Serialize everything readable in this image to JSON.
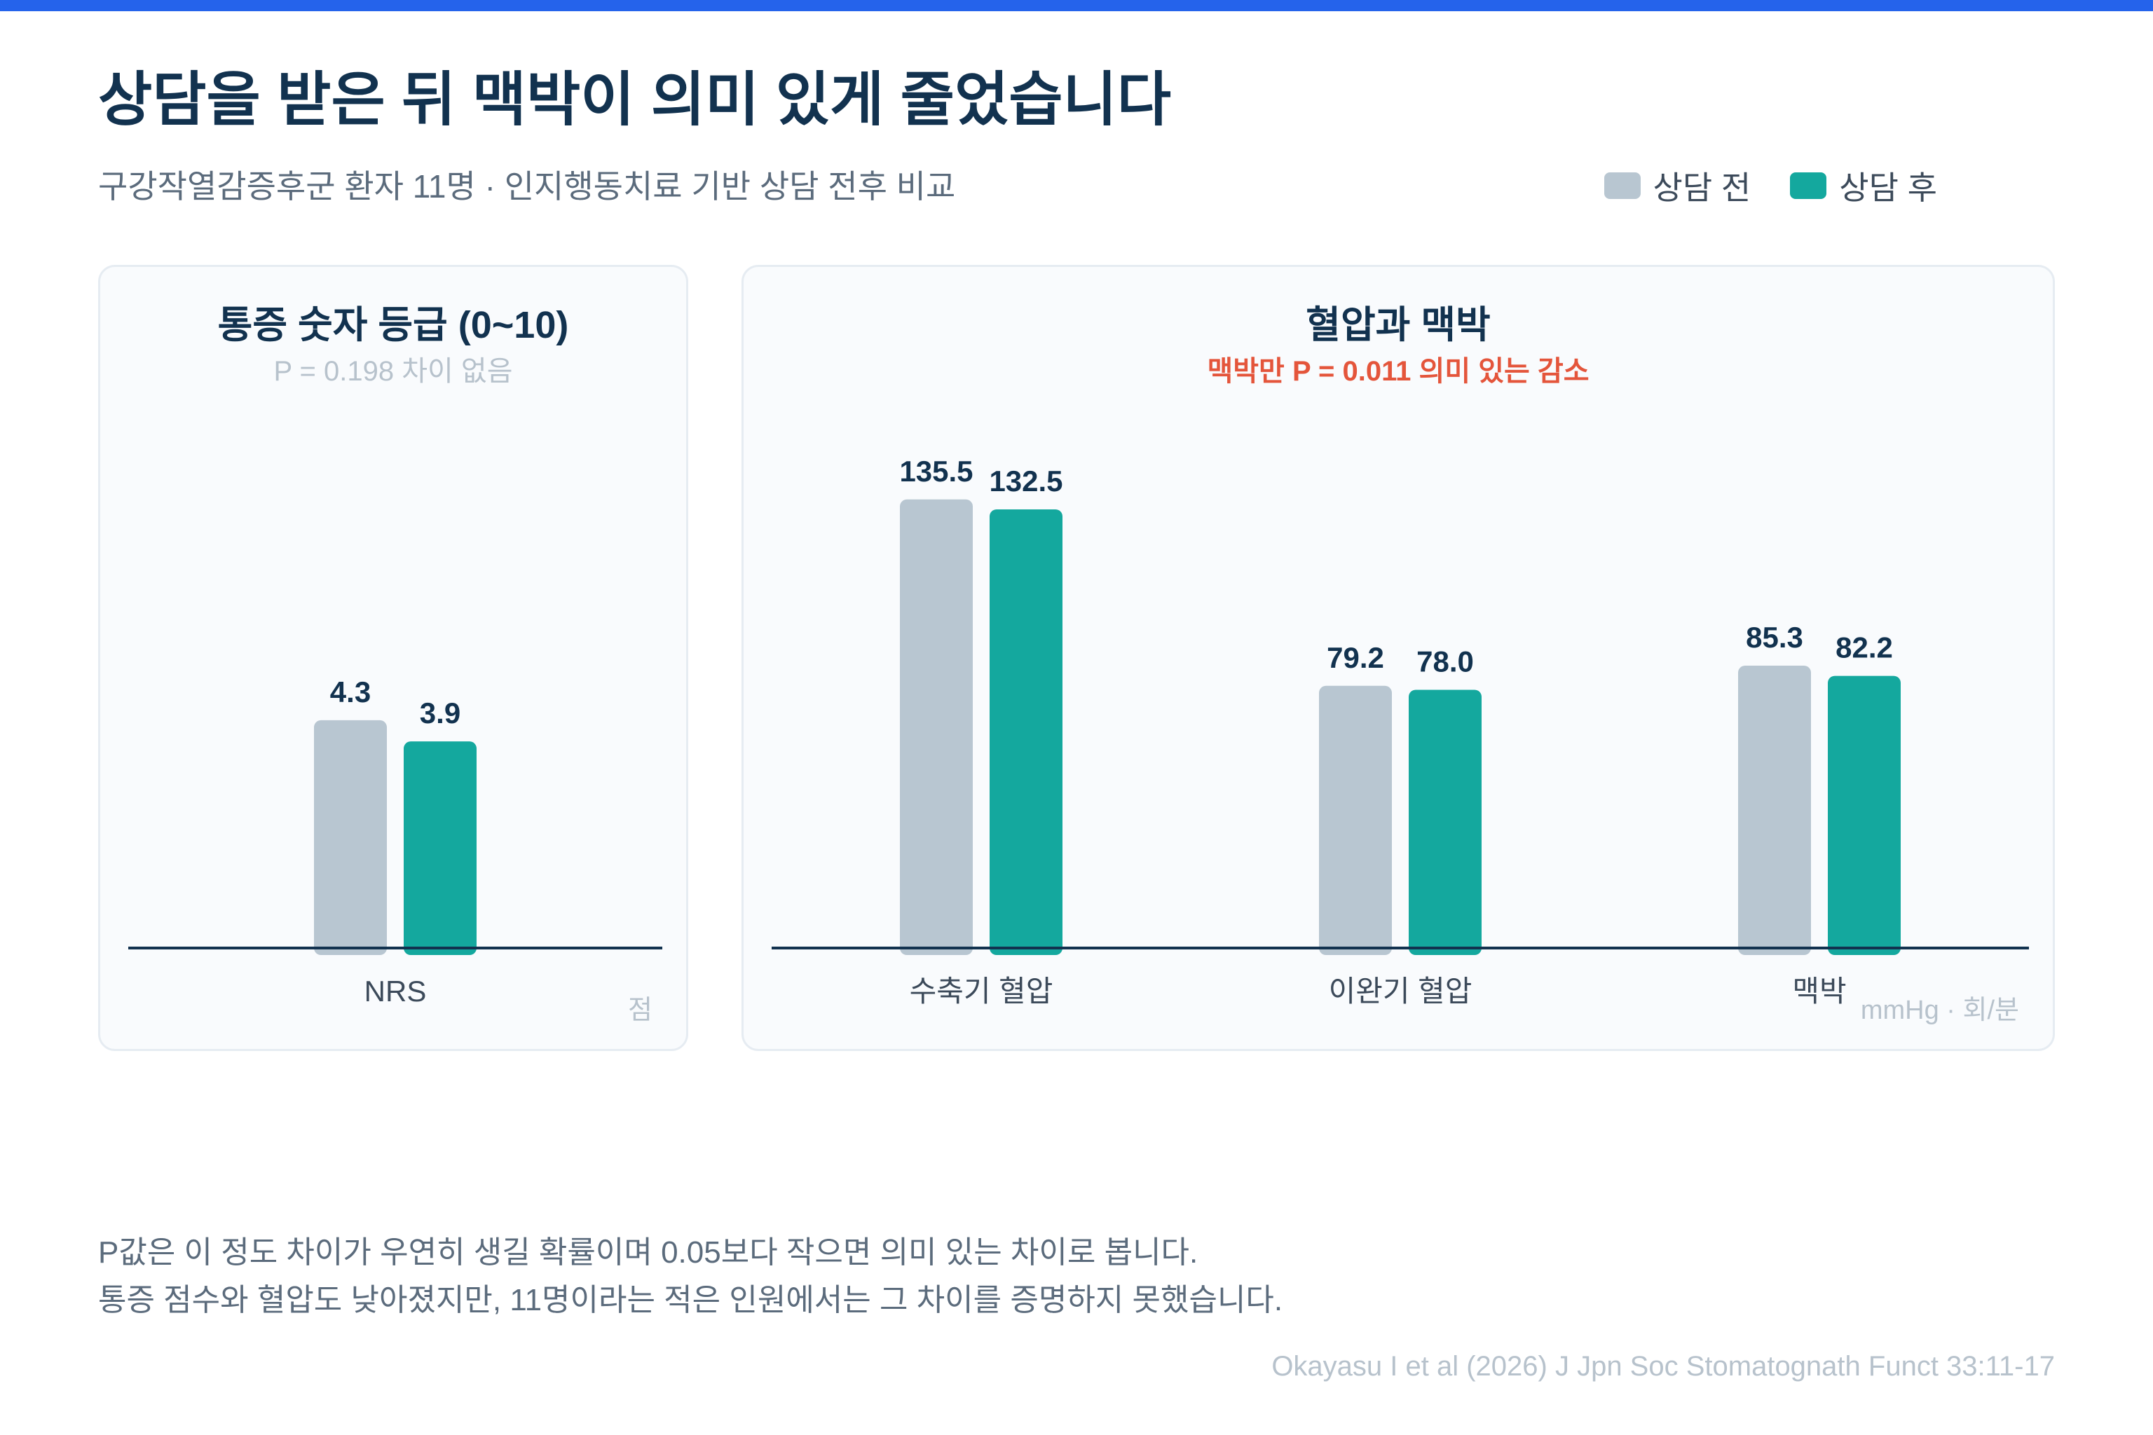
{
  "title": "상담을 받은 뒤 맥박이 의미 있게 줄었습니다",
  "subtitle": "구강작열감증후군 환자 11명 · 인지행동치료 기반 상담 전후 비교",
  "legend": [
    {
      "label": "상담 전",
      "color": "#b8c6d1"
    },
    {
      "label": "상담 후",
      "color": "#14a89e"
    }
  ],
  "colors": {
    "accent": "#2563eb",
    "before": "#b8c6d1",
    "after": "#14a89e",
    "significant": "#e4553b",
    "axis": "#12324f"
  },
  "chart_data": [
    {
      "type": "bar",
      "title": "통증 숫자 등급 (0~10)",
      "subtitle": "P = 0.198 차이 없음",
      "unit": "점",
      "categories": [
        "NRS"
      ],
      "series": [
        {
          "name": "상담 전",
          "values": [
            4.3
          ],
          "labels": [
            "4.3"
          ]
        },
        {
          "name": "상담 후",
          "values": [
            3.9
          ],
          "labels": [
            "3.9"
          ]
        }
      ],
      "ylim": [
        0,
        10
      ],
      "grid": false,
      "legend": "top-right"
    },
    {
      "type": "bar",
      "title": "혈압과 맥박",
      "subtitle": "맥박만 P = 0.011 의미 있는 감소",
      "unit": "mmHg · 회/분",
      "categories": [
        "수축기 혈압",
        "이완기 혈압",
        "맥박"
      ],
      "series": [
        {
          "name": "상담 전",
          "values": [
            135.5,
            79.2,
            85.3
          ],
          "labels": [
            "135.5",
            "79.2",
            "85.3"
          ]
        },
        {
          "name": "상담 후",
          "values": [
            132.5,
            78.0,
            82.2
          ],
          "labels": [
            "132.5",
            "78.0",
            "82.2"
          ]
        }
      ],
      "ylim": [
        0,
        160
      ],
      "grid": false,
      "legend": "top-right"
    }
  ],
  "footnote": [
    "P값은 이 정도 차이가 우연히 생길 확률이며 0.05보다 작으면 의미 있는 차이로 봅니다.",
    "통증 점수와 혈압도 낮아졌지만, 11명이라는 적은 인원에서는 그 차이를 증명하지 못했습니다."
  ],
  "source": "Okayasu I et al (2026) J Jpn Soc Stomatognath Funct 33:11-17"
}
